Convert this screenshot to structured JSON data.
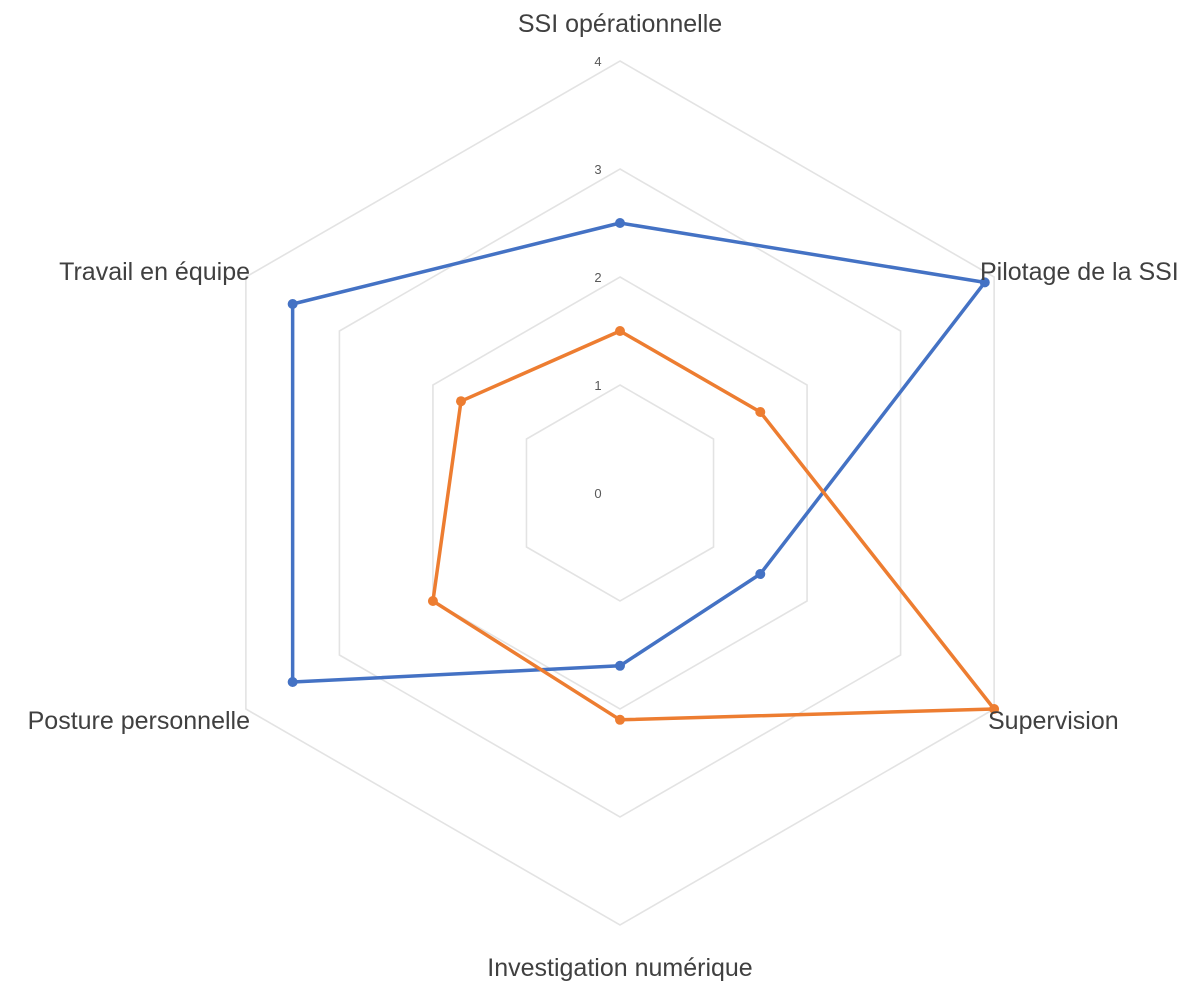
{
  "chart_data": {
    "type": "radar",
    "categories": [
      "SSI opérationnelle",
      "Pilotage de la SSI",
      "Supervision",
      "Investigation numérique",
      "Posture personnelle",
      "Travail en équipe"
    ],
    "series": [
      {
        "values": [
          2.5,
          3.9,
          1.5,
          1.6,
          3.5,
          3.5
        ],
        "color": "#4472c4"
      },
      {
        "values": [
          1.5,
          1.5,
          4.0,
          2.1,
          2.0,
          1.7
        ],
        "color": "#ed7d31"
      }
    ],
    "rlim": [
      0,
      4
    ],
    "ticks": [
      "0",
      "1",
      "2",
      "3",
      "4"
    ],
    "grid": true,
    "legend": false
  }
}
